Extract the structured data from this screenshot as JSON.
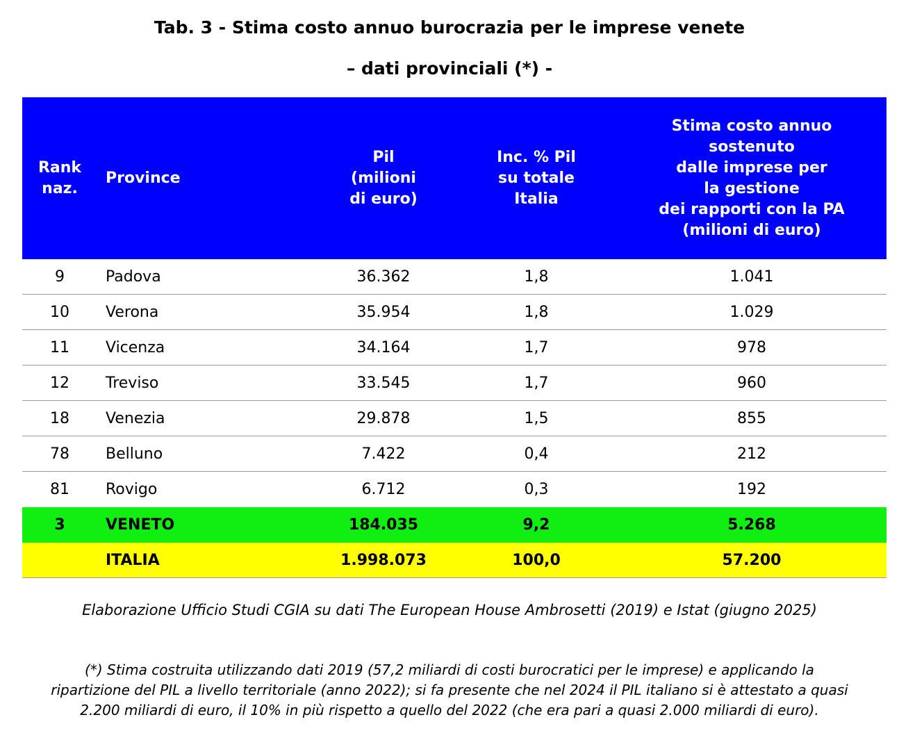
{
  "title_line1": "Tab. 3 - Stima costo annuo burocrazia per le imprese venete",
  "title_line2": "– dati provinciali (*) -",
  "header": {
    "rank": "Rank\nnaz.",
    "province": "Province",
    "pil": "Pil\n(milioni\ndi euro)",
    "inc": "Inc. % Pil\nsu totale\nItalia",
    "costo": "Stima costo annuo\nsostenuto\ndalle imprese per\nla gestione\ndei rapporti con la PA\n(milioni di euro)"
  },
  "rows": [
    {
      "rank": "9",
      "province": "Padova",
      "pil": "36.362",
      "inc": "1,8",
      "costo": "1.041"
    },
    {
      "rank": "10",
      "province": "Verona",
      "pil": "35.954",
      "inc": "1,8",
      "costo": "1.029"
    },
    {
      "rank": "11",
      "province": "Vicenza",
      "pil": "34.164",
      "inc": "1,7",
      "costo": "978"
    },
    {
      "rank": "12",
      "province": "Treviso",
      "pil": "33.545",
      "inc": "1,7",
      "costo": "960"
    },
    {
      "rank": "18",
      "province": "Venezia",
      "pil": "29.878",
      "inc": "1,5",
      "costo": "855"
    },
    {
      "rank": "78",
      "province": "Belluno",
      "pil": "7.422",
      "inc": "0,4",
      "costo": "212"
    },
    {
      "rank": "81",
      "province": "Rovigo",
      "pil": "6.712",
      "inc": "0,3",
      "costo": "192"
    }
  ],
  "veneto": {
    "rank": "3",
    "province": "VENETO",
    "pil": "184.035",
    "inc": "9,2",
    "costo": "5.268"
  },
  "italia": {
    "rank": "",
    "province": "ITALIA",
    "pil": "1.998.073",
    "inc": "100,0",
    "costo": "57.200"
  },
  "source": "Elaborazione Ufficio Studi CGIA su dati The European House Ambrosetti (2019) e Istat (giugno 2025)",
  "note_lines": [
    "(*) Stima costruita utilizzando dati 2019 (57,2 miliardi di costi burocratici per le imprese) e applicando la",
    "ripartizione del PIL a livello territoriale (anno 2022); si fa presente che nel 2024 il PIL italiano si è attestato a quasi",
    "2.200 miliardi di euro, il 10% in più rispetto a quello del 2022 (che era pari a quasi 2.000 miliardi di euro)."
  ],
  "colors": {
    "header_bg": "#0000ff",
    "veneto_bg": "#11ee11",
    "italia_bg": "#ffff00"
  }
}
